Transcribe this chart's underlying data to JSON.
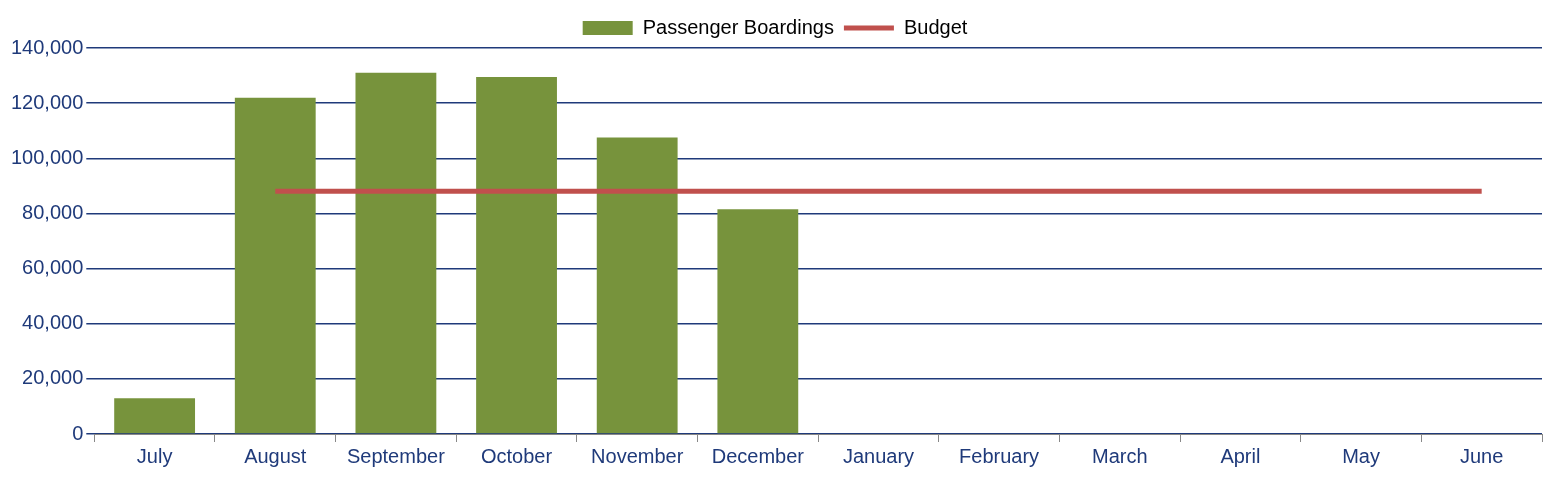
{
  "chart_data": {
    "type": "bar",
    "categories": [
      "July",
      "August",
      "September",
      "October",
      "November",
      "December",
      "January",
      "February",
      "March",
      "April",
      "May",
      "June"
    ],
    "series": [
      {
        "name": "Passenger Boardings",
        "color": "#77933c",
        "values": [
          13000,
          122000,
          131000,
          129500,
          107500,
          81500,
          null,
          null,
          null,
          null,
          null,
          null
        ]
      },
      {
        "name": "Budget",
        "type": "line",
        "color": "#c0504d",
        "values": [
          null,
          88000,
          88000,
          88000,
          88000,
          88000,
          88000,
          88000,
          88000,
          88000,
          88000,
          88000
        ]
      }
    ],
    "ylim": [
      0,
      140000
    ],
    "yticks": [
      0,
      {
        "value": 20000,
        "label": "20,000"
      },
      {
        "value": 40000,
        "label": "40,000"
      },
      {
        "value": 60000,
        "label": "60,000"
      },
      {
        "value": 80000,
        "label": "80,000"
      },
      {
        "value": 100000,
        "label": "100,000"
      },
      {
        "value": 120000,
        "label": "120,000"
      },
      {
        "value": 140000,
        "label": "140,000"
      }
    ],
    "grid": "y",
    "legend": "top",
    "marker": "none"
  }
}
